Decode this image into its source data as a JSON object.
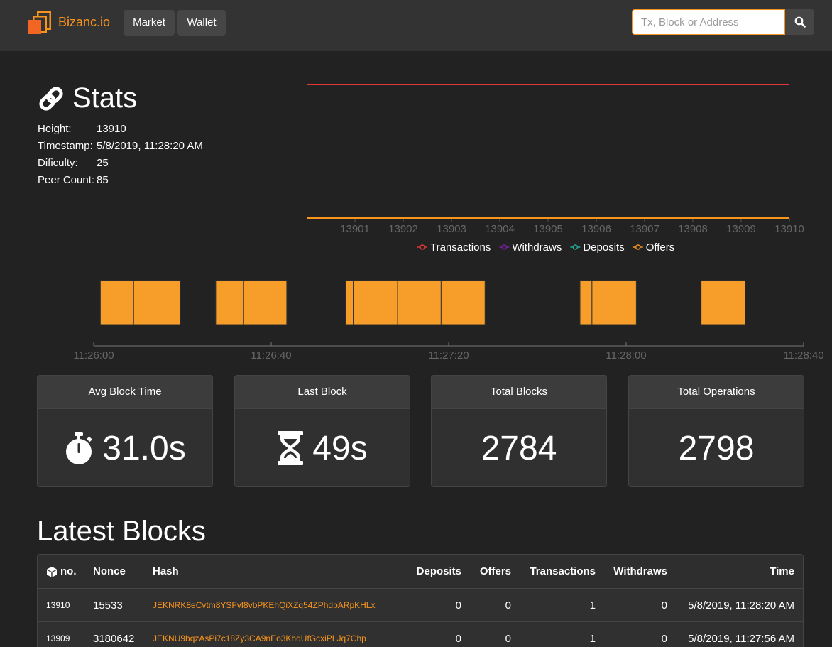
{
  "navbar": {
    "brand": "Bizanc.io",
    "market_label": "Market",
    "wallet_label": "Wallet",
    "search_placeholder": "Tx, Block or Address",
    "accent": "#f7941d"
  },
  "stats": {
    "title": "Stats",
    "rows": [
      {
        "label": "Height:",
        "value": "13910"
      },
      {
        "label": "Timestamp:",
        "value": "5/8/2019, 11:28:20 AM"
      },
      {
        "label": "Dificulty:",
        "value": "25"
      },
      {
        "label": "Peer Count:",
        "value": "85"
      }
    ]
  },
  "chart_data": [
    {
      "type": "line",
      "x": [
        13901,
        13902,
        13903,
        13904,
        13905,
        13906,
        13907,
        13908,
        13909,
        13910
      ],
      "series": [
        {
          "name": "Transactions",
          "color": "#e53935",
          "values": [
            1,
            1,
            1,
            1,
            1,
            1,
            1,
            1,
            1,
            1
          ]
        },
        {
          "name": "Withdraws",
          "color": "#7b1fa2",
          "values": [
            0,
            0,
            0,
            0,
            0,
            0,
            0,
            0,
            0,
            0
          ]
        },
        {
          "name": "Deposits",
          "color": "#26a69a",
          "values": [
            0,
            0,
            0,
            0,
            0,
            0,
            0,
            0,
            0,
            0
          ]
        },
        {
          "name": "Offers",
          "color": "#f7941d",
          "values": [
            0,
            0,
            0,
            0,
            0,
            0,
            0,
            0,
            0,
            0
          ]
        }
      ],
      "ylim": [
        0,
        1
      ],
      "legend": "bottom",
      "grid": false
    },
    {
      "type": "timeline",
      "tick_labels": [
        "11:26:00",
        "11:26:40",
        "11:27:20",
        "11:28:00",
        "11:28:40"
      ],
      "blocks": [
        {
          "start": 1.5,
          "end": 9,
          "label": ""
        },
        {
          "start": 9,
          "end": 19.5,
          "label": ""
        },
        {
          "start": 27.5,
          "end": 33.8,
          "label": ""
        },
        {
          "start": 33.8,
          "end": 43.5,
          "label": ""
        },
        {
          "start": 56.8,
          "end": 58.5,
          "label": ""
        },
        {
          "start": 58.5,
          "end": 68.5,
          "label": ""
        },
        {
          "start": 68.5,
          "end": 78.3,
          "label": ""
        },
        {
          "start": 78.3,
          "end": 88.2,
          "label": ""
        },
        {
          "start": 109.6,
          "end": 112.3,
          "label": ""
        },
        {
          "start": 112.3,
          "end": 122.3,
          "label": ""
        },
        {
          "start": 136.9,
          "end": 146.8,
          "label": ""
        }
      ],
      "color": "#f79d2a"
    }
  ],
  "cards": [
    {
      "title": "Avg Block Time",
      "value": "31.0s",
      "icon": "stopwatch-icon"
    },
    {
      "title": "Last Block",
      "value": "49s",
      "icon": "hourglass-icon"
    },
    {
      "title": "Total Blocks",
      "value": "2784"
    },
    {
      "title": "Total Operations",
      "value": "2798"
    }
  ],
  "latest": {
    "title": "Latest Blocks",
    "headers": {
      "no": "no.",
      "nonce": "Nonce",
      "hash": "Hash",
      "deposits": "Deposits",
      "offers": "Offers",
      "transactions": "Transactions",
      "withdraws": "Withdraws",
      "time": "Time"
    },
    "rows": [
      {
        "no": "13910",
        "nonce": "15533",
        "hash": "JEKNRK8eCvtm8YSFvf8vbPKEhQiXZq54ZPhdpARpKHLx",
        "deposits": "0",
        "offers": "0",
        "transactions": "1",
        "withdraws": "0",
        "time": "5/8/2019, 11:28:20 AM"
      },
      {
        "no": "13909",
        "nonce": "3180642",
        "hash": "JEKNU9bqzAsPi7c18Zy3CA9nEo3KhdUfGcxiPLJq7Chp",
        "deposits": "0",
        "offers": "0",
        "transactions": "1",
        "withdraws": "0",
        "time": "5/8/2019, 11:27:56 AM"
      }
    ]
  }
}
